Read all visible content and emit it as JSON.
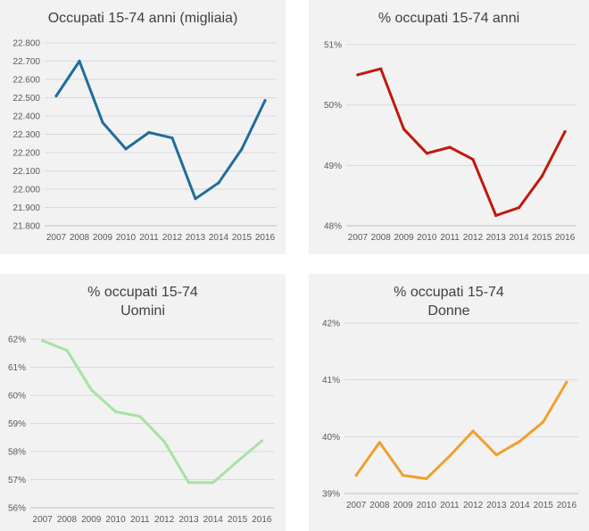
{
  "chart_data": [
    {
      "type": "line",
      "title": "Occupati 15-74 anni (migliaia)",
      "title_lines": [
        "Occupati 15-74 anni (migliaia)"
      ],
      "categories": [
        "2007",
        "2008",
        "2009",
        "2010",
        "2011",
        "2012",
        "2013",
        "2014",
        "2015",
        "2016"
      ],
      "series": [
        {
          "values": [
            22510,
            22700,
            22365,
            22220,
            22310,
            22280,
            21948,
            22035,
            22220,
            22485
          ]
        }
      ],
      "ylim": [
        21800,
        22800
      ],
      "ytick_values": [
        21800,
        21900,
        22000,
        22100,
        22200,
        22300,
        22400,
        22500,
        22600,
        22700,
        22800
      ],
      "ytick_labels": [
        "21.800",
        "21.900",
        "22.000",
        "22.100",
        "22.200",
        "22.300",
        "22.400",
        "22.500",
        "22.600",
        "22.700",
        "22.800"
      ],
      "color": "#1f6d9b",
      "grid": true,
      "xlabel": "",
      "ylabel": ""
    },
    {
      "type": "line",
      "title": "% occupati 15-74 anni",
      "title_lines": [
        "% occupati 15-74 anni"
      ],
      "categories": [
        "2007",
        "2008",
        "2009",
        "2010",
        "2011",
        "2012",
        "2013",
        "2014",
        "2015",
        "2016"
      ],
      "series": [
        {
          "values": [
            50.5,
            50.6,
            49.6,
            49.2,
            49.3,
            49.1,
            48.17,
            48.3,
            48.82,
            49.56
          ]
        }
      ],
      "ylim": [
        48,
        51
      ],
      "ytick_values": [
        48,
        49,
        50,
        51
      ],
      "ytick_labels": [
        "48%",
        "49%",
        "50%",
        "51%"
      ],
      "color": "#c0190b",
      "grid": true,
      "xlabel": "",
      "ylabel": ""
    },
    {
      "type": "line",
      "title": "% occupati 15-74 Uomini",
      "title_lines": [
        "% occupati 15-74",
        "Uomini"
      ],
      "categories": [
        "2007",
        "2008",
        "2009",
        "2010",
        "2011",
        "2012",
        "2013",
        "2014",
        "2015",
        "2016"
      ],
      "series": [
        {
          "values": [
            61.95,
            61.6,
            60.2,
            59.42,
            59.25,
            58.35,
            56.9,
            56.9,
            57.65,
            58.38
          ]
        }
      ],
      "ylim": [
        56,
        62
      ],
      "ytick_values": [
        56,
        57,
        58,
        59,
        60,
        61,
        62
      ],
      "ytick_labels": [
        "56%",
        "57%",
        "58%",
        "59%",
        "60%",
        "61%",
        "62%"
      ],
      "color": "#a6e2a3",
      "grid": true,
      "xlabel": "",
      "ylabel": ""
    },
    {
      "type": "line",
      "title": "% occupati 15-74 Donne",
      "title_lines": [
        "% occupati 15-74",
        "Donne"
      ],
      "categories": [
        "2007",
        "2008",
        "2009",
        "2010",
        "2011",
        "2012",
        "2013",
        "2014",
        "2015",
        "2016"
      ],
      "series": [
        {
          "values": [
            39.32,
            39.9,
            39.32,
            39.26,
            39.66,
            40.1,
            39.68,
            39.92,
            40.26,
            40.96
          ]
        }
      ],
      "ylim": [
        39,
        42
      ],
      "ytick_values": [
        39,
        40,
        41,
        42
      ],
      "ytick_labels": [
        "39%",
        "40%",
        "41%",
        "42%"
      ],
      "color": "#f0a02c",
      "grid": true,
      "xlabel": "",
      "ylabel": ""
    }
  ]
}
